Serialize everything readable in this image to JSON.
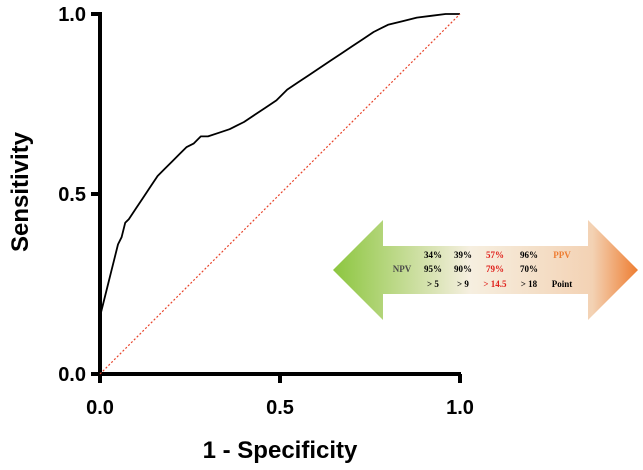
{
  "chart_data": {
    "type": "line",
    "xlabel": "1 - Specificity",
    "ylabel": "Sensitivity",
    "xlim": [
      0,
      1
    ],
    "ylim": [
      0,
      1
    ],
    "x_ticks": [
      "0.0",
      "0.5",
      "1.0"
    ],
    "y_ticks": [
      "0.0",
      "0.5",
      "1.0"
    ],
    "grid": false,
    "series": [
      {
        "style": "solid",
        "color": "#000000",
        "x": [
          0.0,
          0.0,
          0.01,
          0.02,
          0.03,
          0.04,
          0.05,
          0.06,
          0.07,
          0.08,
          0.1,
          0.12,
          0.14,
          0.16,
          0.18,
          0.2,
          0.22,
          0.24,
          0.26,
          0.28,
          0.3,
          0.33,
          0.36,
          0.38,
          0.4,
          0.43,
          0.46,
          0.49,
          0.52,
          0.55,
          0.58,
          0.61,
          0.64,
          0.67,
          0.7,
          0.73,
          0.76,
          0.8,
          0.84,
          0.88,
          0.92,
          0.96,
          1.0
        ],
        "y": [
          0.0,
          0.16,
          0.2,
          0.24,
          0.28,
          0.32,
          0.36,
          0.38,
          0.42,
          0.43,
          0.46,
          0.49,
          0.52,
          0.55,
          0.57,
          0.59,
          0.61,
          0.63,
          0.64,
          0.66,
          0.66,
          0.67,
          0.68,
          0.69,
          0.7,
          0.72,
          0.74,
          0.76,
          0.79,
          0.81,
          0.83,
          0.85,
          0.87,
          0.89,
          0.91,
          0.93,
          0.95,
          0.97,
          0.98,
          0.99,
          0.995,
          1.0,
          1.0
        ]
      },
      {
        "style": "dotted",
        "color": "#e8452c",
        "x": [
          0,
          1
        ],
        "y": [
          0,
          1
        ]
      }
    ],
    "annotation_arrow": {
      "left_color": "#8cc63f",
      "right_color": "#ee7d31",
      "rows": [
        {
          "row_label": "",
          "cells": [
            "34%",
            "39%",
            "57%",
            "96%"
          ],
          "end_label": "PPV"
        },
        {
          "row_label": "NPV",
          "cells": [
            "95%",
            "90%",
            "79%",
            "70%"
          ],
          "end_label": ""
        },
        {
          "row_label": "",
          "cells": [
            "> 5",
            "> 9",
            "> 14.5",
            "> 18"
          ],
          "end_label": "Point"
        }
      ],
      "highlight_column": 2,
      "highlight_color": "#e0201b",
      "ppv_color": "#ee7d31",
      "npv_color": "#4a4a4a"
    }
  }
}
